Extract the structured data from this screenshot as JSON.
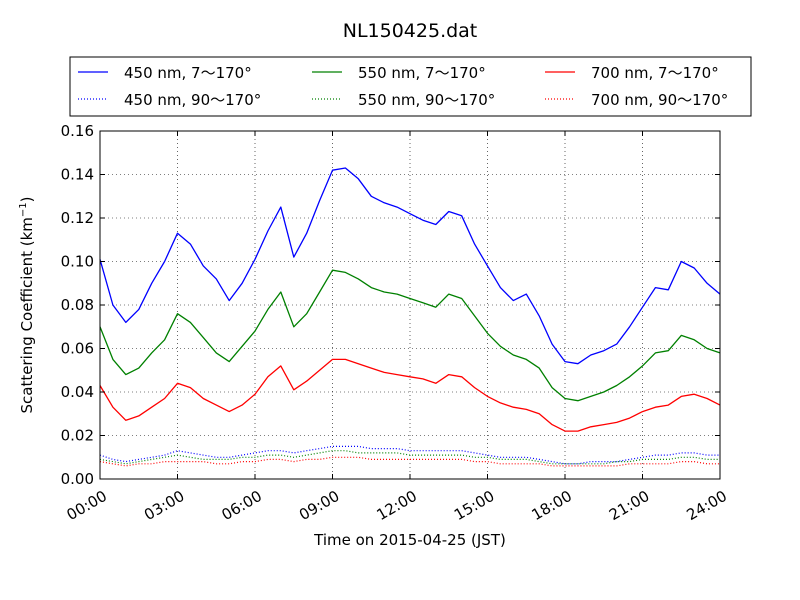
{
  "chart_data": {
    "type": "line",
    "title": "NL150425.dat",
    "xlabel": "Time on 2015-04-25 (JST)",
    "ylabel": "Scattering Coefficient (km",
    "ylabel_sup": "−1",
    "ylabel_close": ")",
    "xlim": [
      "00:00",
      "24:00"
    ],
    "ylim": [
      0,
      0.16
    ],
    "x_ticks": [
      "00:00",
      "03:00",
      "06:00",
      "09:00",
      "12:00",
      "15:00",
      "18:00",
      "21:00",
      "24:00"
    ],
    "y_ticks": [
      "0.00",
      "0.02",
      "0.04",
      "0.06",
      "0.08",
      "0.10",
      "0.12",
      "0.14",
      "0.16"
    ],
    "grid": true,
    "legend_placement": "top, outside plot, 3 columns",
    "x": [
      "00:00",
      "00:30",
      "01:00",
      "01:30",
      "02:00",
      "02:30",
      "03:00",
      "03:30",
      "04:00",
      "04:30",
      "05:00",
      "05:30",
      "06:00",
      "06:30",
      "07:00",
      "07:30",
      "08:00",
      "08:30",
      "09:00",
      "09:30",
      "10:00",
      "10:30",
      "11:00",
      "11:30",
      "12:00",
      "12:30",
      "13:00",
      "13:30",
      "14:00",
      "14:30",
      "15:00",
      "15:30",
      "16:00",
      "16:30",
      "17:00",
      "17:30",
      "18:00",
      "18:30",
      "19:00",
      "19:30",
      "20:00",
      "20:30",
      "21:00",
      "21:30",
      "22:00",
      "22:30",
      "23:00",
      "23:30",
      "24:00"
    ],
    "series": [
      {
        "name": "450 nm, 7～170°",
        "color": "#0000ff",
        "style": "solid",
        "values": [
          0.101,
          0.08,
          0.072,
          0.078,
          0.09,
          0.1,
          0.113,
          0.108,
          0.098,
          0.092,
          0.082,
          0.09,
          0.101,
          0.114,
          0.125,
          0.102,
          0.113,
          0.128,
          0.142,
          0.143,
          0.138,
          0.13,
          0.127,
          0.125,
          0.122,
          0.119,
          0.117,
          0.123,
          0.121,
          0.108,
          0.098,
          0.088,
          0.082,
          0.085,
          0.075,
          0.062,
          0.054,
          0.053,
          0.057,
          0.059,
          0.062,
          0.07,
          0.079,
          0.088,
          0.087,
          0.1,
          0.097,
          0.09,
          0.085
        ]
      },
      {
        "name": "550 nm, 7～170°",
        "color": "#008000",
        "style": "solid",
        "values": [
          0.07,
          0.055,
          0.048,
          0.051,
          0.058,
          0.064,
          0.076,
          0.072,
          0.065,
          0.058,
          0.054,
          0.061,
          0.068,
          0.078,
          0.086,
          0.07,
          0.076,
          0.086,
          0.096,
          0.095,
          0.092,
          0.088,
          0.086,
          0.085,
          0.083,
          0.081,
          0.079,
          0.085,
          0.083,
          0.075,
          0.067,
          0.061,
          0.057,
          0.055,
          0.051,
          0.042,
          0.037,
          0.036,
          0.038,
          0.04,
          0.043,
          0.047,
          0.052,
          0.058,
          0.059,
          0.066,
          0.064,
          0.06,
          0.058
        ]
      },
      {
        "name": "700 nm, 7～170°",
        "color": "#ff0000",
        "style": "solid",
        "values": [
          0.043,
          0.033,
          0.027,
          0.029,
          0.033,
          0.037,
          0.044,
          0.042,
          0.037,
          0.034,
          0.031,
          0.034,
          0.039,
          0.047,
          0.052,
          0.041,
          0.045,
          0.05,
          0.055,
          0.055,
          0.053,
          0.051,
          0.049,
          0.048,
          0.047,
          0.046,
          0.044,
          0.048,
          0.047,
          0.042,
          0.038,
          0.035,
          0.033,
          0.032,
          0.03,
          0.025,
          0.022,
          0.022,
          0.024,
          0.025,
          0.026,
          0.028,
          0.031,
          0.033,
          0.034,
          0.038,
          0.039,
          0.037,
          0.034
        ]
      },
      {
        "name": "450 nm, 90～170°",
        "color": "#0000ff",
        "style": "dotted",
        "values": [
          0.011,
          0.009,
          0.008,
          0.009,
          0.01,
          0.011,
          0.013,
          0.012,
          0.011,
          0.01,
          0.01,
          0.011,
          0.012,
          0.013,
          0.013,
          0.012,
          0.013,
          0.014,
          0.015,
          0.015,
          0.015,
          0.014,
          0.014,
          0.014,
          0.013,
          0.013,
          0.013,
          0.013,
          0.013,
          0.012,
          0.011,
          0.01,
          0.01,
          0.01,
          0.009,
          0.008,
          0.007,
          0.007,
          0.008,
          0.008,
          0.008,
          0.009,
          0.01,
          0.011,
          0.011,
          0.012,
          0.012,
          0.011,
          0.011
        ]
      },
      {
        "name": "550 nm, 90～170°",
        "color": "#008000",
        "style": "dotted",
        "values": [
          0.009,
          0.008,
          0.007,
          0.008,
          0.009,
          0.01,
          0.011,
          0.01,
          0.009,
          0.009,
          0.009,
          0.01,
          0.01,
          0.011,
          0.011,
          0.01,
          0.011,
          0.012,
          0.013,
          0.013,
          0.012,
          0.012,
          0.012,
          0.012,
          0.011,
          0.011,
          0.011,
          0.011,
          0.011,
          0.01,
          0.01,
          0.009,
          0.009,
          0.009,
          0.008,
          0.007,
          0.007,
          0.007,
          0.007,
          0.007,
          0.008,
          0.008,
          0.009,
          0.009,
          0.009,
          0.01,
          0.01,
          0.009,
          0.009
        ]
      },
      {
        "name": "700 nm, 90～170°",
        "color": "#ff0000",
        "style": "dotted",
        "values": [
          0.008,
          0.007,
          0.006,
          0.007,
          0.007,
          0.008,
          0.008,
          0.008,
          0.008,
          0.007,
          0.007,
          0.008,
          0.008,
          0.009,
          0.009,
          0.008,
          0.009,
          0.009,
          0.01,
          0.01,
          0.01,
          0.009,
          0.009,
          0.009,
          0.009,
          0.009,
          0.009,
          0.009,
          0.009,
          0.008,
          0.008,
          0.007,
          0.007,
          0.007,
          0.007,
          0.006,
          0.006,
          0.006,
          0.006,
          0.006,
          0.006,
          0.007,
          0.007,
          0.007,
          0.007,
          0.008,
          0.008,
          0.007,
          0.007
        ]
      }
    ]
  }
}
